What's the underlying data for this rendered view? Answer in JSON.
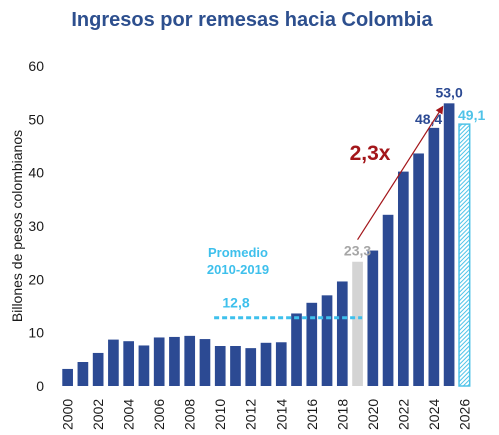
{
  "chart_data": {
    "type": "bar",
    "title": "Ingresos por remesas hacia Colombia",
    "ylabel": "Billones de pesos colombianos",
    "xlabel": "",
    "ylim": [
      0,
      60
    ],
    "yticks": [
      0,
      10,
      20,
      30,
      40,
      50,
      60
    ],
    "grid": false,
    "categories": [
      "2000",
      "2001",
      "2002",
      "2003",
      "2004",
      "2005",
      "2006",
      "2007",
      "2008",
      "2009",
      "2010",
      "2011",
      "2012",
      "2013",
      "2014",
      "2015",
      "2016",
      "2017",
      "2018",
      "2019",
      "2020",
      "2021",
      "2022",
      "2023",
      "2024",
      "2025",
      "2026"
    ],
    "x_tick_labels": [
      "2000",
      "2002",
      "2004",
      "2006",
      "2008",
      "2010",
      "2012",
      "2014",
      "2016",
      "2018",
      "2020",
      "2022",
      "2024",
      "2026"
    ],
    "values": [
      3.2,
      4.5,
      6.2,
      8.7,
      8.4,
      7.6,
      9.1,
      9.2,
      9.4,
      8.8,
      7.5,
      7.5,
      7.1,
      8.1,
      8.2,
      13.6,
      15.6,
      17.0,
      19.6,
      23.3,
      25.4,
      32.1,
      40.2,
      43.6,
      48.4,
      53.0,
      49.1
    ],
    "bar_styles": [
      "solid",
      "solid",
      "solid",
      "solid",
      "solid",
      "solid",
      "solid",
      "solid",
      "solid",
      "solid",
      "solid",
      "solid",
      "solid",
      "solid",
      "solid",
      "solid",
      "solid",
      "solid",
      "solid",
      "highlight",
      "solid",
      "solid",
      "solid",
      "solid",
      "solid",
      "solid",
      "hatched"
    ],
    "data_labels": [
      {
        "index": 19,
        "text": "23,3",
        "style": "gray"
      },
      {
        "index": 24,
        "text": "48,4",
        "style": "navy"
      },
      {
        "index": 25,
        "text": "53,0",
        "style": "navy"
      },
      {
        "index": 26,
        "text": "49,1",
        "style": "cyan"
      }
    ],
    "average_line": {
      "label": "Promedio\n2010-2019",
      "value": 12.8,
      "value_text": "12,8",
      "from_index": 10,
      "to_index": 19
    },
    "growth_arrow": {
      "label": "2,3x",
      "from_index": 19,
      "from_value": 23.3,
      "to_index": 25,
      "to_value": 53.0
    },
    "colors": {
      "bar": "#2c4a93",
      "highlight": "#d4d4d4",
      "hatched": "#4fc3e8",
      "average": "#3ec0ec",
      "growth": "#a3161a",
      "title": "#2d4f8e",
      "label_gray": "#a6a6a6",
      "label_navy": "#2c4a93",
      "label_cyan": "#4fc3e8"
    }
  }
}
